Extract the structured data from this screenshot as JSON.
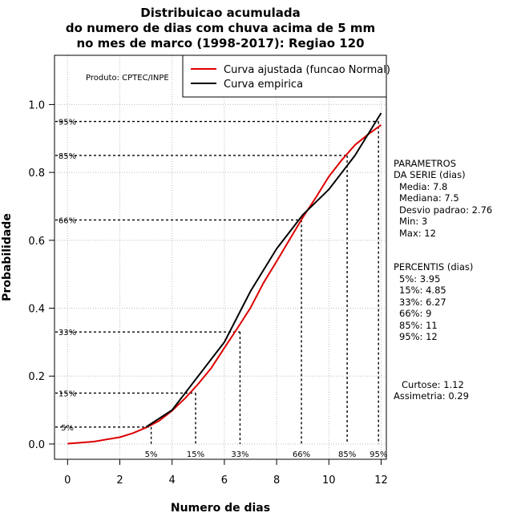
{
  "chart_data": {
    "type": "line",
    "title_lines": [
      "Distribuicao acumulada",
      "do numero de dias com chuva acima de 5 mm",
      "no mes de marco (1998-2017): Regiao 120"
    ],
    "xlabel": "Numero de dias",
    "ylabel": "Probabilidade",
    "xlim": [
      -0.5,
      12.2
    ],
    "ylim": [
      -0.045,
      1.145
    ],
    "x_ticks": [
      0,
      2,
      4,
      6,
      8,
      10,
      12
    ],
    "y_ticks": [
      0.0,
      0.2,
      0.4,
      0.6,
      0.8,
      1.0
    ],
    "x_tick_labels": [
      "0",
      "2",
      "4",
      "6",
      "8",
      "10",
      "12"
    ],
    "y_tick_labels": [
      "0.0",
      "0.2",
      "0.4",
      "0.6",
      "0.8",
      "1.0"
    ],
    "grid": true,
    "product_label": "Produto: CPTEC/INPE",
    "legend_position": "top-right",
    "series": [
      {
        "name": "Curva ajustada (funcao Normal)",
        "color": "#dd0000",
        "x": [
          0,
          1,
          2,
          2.5,
          3,
          3.5,
          4,
          4.5,
          5,
          5.5,
          6,
          6.5,
          7,
          7.5,
          8,
          8.5,
          9,
          9.5,
          10,
          10.5,
          11,
          11.5,
          12
        ],
        "y": [
          0.001,
          0.007,
          0.02,
          0.032,
          0.048,
          0.068,
          0.098,
          0.135,
          0.177,
          0.224,
          0.283,
          0.341,
          0.401,
          0.475,
          0.538,
          0.603,
          0.667,
          0.726,
          0.788,
          0.837,
          0.881,
          0.912,
          0.94
        ]
      },
      {
        "name": "Curva empirica",
        "color": "#000000",
        "x": [
          3,
          4,
          5,
          6,
          7,
          8,
          9,
          10,
          11,
          12
        ],
        "y": [
          0.05,
          0.1,
          0.2,
          0.3,
          0.45,
          0.575,
          0.675,
          0.75,
          0.85,
          0.975
        ]
      }
    ],
    "percentiles": [
      {
        "label": "5%",
        "p": 0.05,
        "x": 3.2
      },
      {
        "label": "15%",
        "p": 0.15,
        "x": 4.9
      },
      {
        "label": "33%",
        "p": 0.33,
        "x": 6.6
      },
      {
        "label": "66%",
        "p": 0.66,
        "x": 8.95
      },
      {
        "label": "85%",
        "p": 0.85,
        "x": 10.7
      },
      {
        "label": "95%",
        "p": 0.95,
        "x": 11.9
      }
    ],
    "side_panel": {
      "parametros_lines": [
        "PARAMETROS",
        "DA SERIE (dias)",
        "Media: 7.8",
        "Mediana: 7.5",
        "Desvio padrao: 2.76",
        "Min: 3",
        "Max: 12"
      ],
      "percentis_lines": [
        "PERCENTIS (dias)",
        "5%: 3.95",
        "15%: 4.85",
        "33%: 6.27",
        "66%: 9",
        "85%: 11",
        "95%: 12"
      ],
      "shape_lines": [
        "Curtose: 1.12",
        "Assimetria: 0.29"
      ]
    }
  }
}
